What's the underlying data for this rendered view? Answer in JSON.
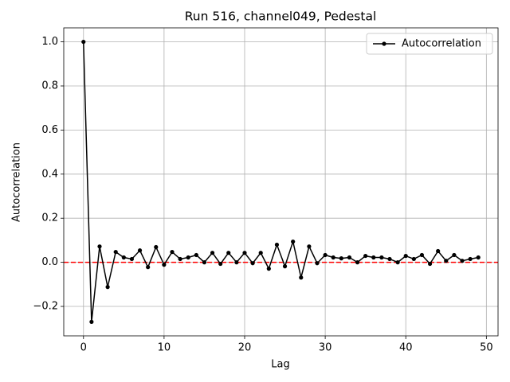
{
  "chart_data": {
    "type": "line",
    "title": "Run 516, channel049, Pedestal",
    "x_label": "Lag",
    "y_label": "Autocorrelation",
    "x": [
      0,
      1,
      2,
      3,
      4,
      5,
      6,
      7,
      8,
      9,
      10,
      11,
      12,
      13,
      14,
      15,
      16,
      17,
      18,
      19,
      20,
      21,
      22,
      23,
      24,
      25,
      26,
      27,
      28,
      29,
      30,
      31,
      32,
      33,
      34,
      35,
      36,
      37,
      38,
      39,
      40,
      41,
      42,
      43,
      44,
      45,
      46,
      47,
      48,
      49
    ],
    "series": [
      {
        "name": "Autocorrelation",
        "color": "#000000",
        "values": [
          1.0,
          -0.27,
          0.072,
          -0.112,
          0.047,
          0.022,
          0.015,
          0.054,
          -0.022,
          0.069,
          -0.011,
          0.047,
          0.015,
          0.022,
          0.033,
          0.0,
          0.043,
          -0.007,
          0.043,
          0.0,
          0.043,
          -0.004,
          0.043,
          -0.029,
          0.08,
          -0.018,
          0.094,
          -0.069,
          0.072,
          -0.004,
          0.033,
          0.022,
          0.018,
          0.022,
          0.0,
          0.029,
          0.022,
          0.022,
          0.015,
          0.0,
          0.029,
          0.015,
          0.033,
          -0.007,
          0.051,
          0.007,
          0.033,
          0.007,
          0.015,
          0.022
        ]
      }
    ],
    "reference_line": {
      "value": 0,
      "color": "#ff0000"
    },
    "xlim": [
      -2.45,
      51.45
    ],
    "xticks": [
      0,
      10,
      20,
      30,
      40,
      50
    ],
    "ylim": [
      -0.3335,
      1.0635
    ],
    "yticks": [
      {
        "value": -0.2,
        "label": "−0.2"
      },
      {
        "value": 0,
        "label": "0.0"
      },
      {
        "value": 0.2,
        "label": "0.2"
      },
      {
        "value": 0.4,
        "label": "0.4"
      },
      {
        "value": 0.6,
        "label": "0.6"
      },
      {
        "value": 0.8,
        "label": "0.8"
      },
      {
        "value": 1.0,
        "label": "1.0"
      }
    ],
    "grid": true,
    "legend": "upper right"
  }
}
